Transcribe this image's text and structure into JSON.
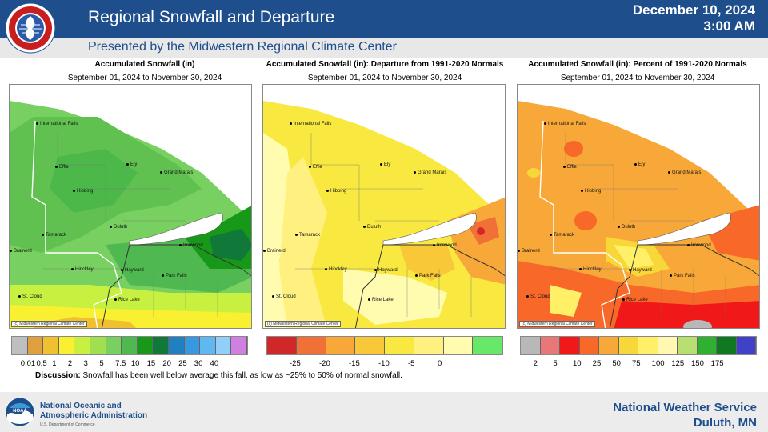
{
  "header": {
    "title": "Regional Snowfall and Departure",
    "subtitle": "Presented by the Midwestern Regional Climate Center",
    "date": "December 10, 2024",
    "time": "3:00 AM",
    "logo_text": "NATIONAL WEATHER SERVICE"
  },
  "panels": [
    {
      "title": "Accumulated Snowfall (in)",
      "dates": "September 01, 2024 to November 30, 2024",
      "legend": {
        "colors": [
          "#bfbfbf",
          "#e0a040",
          "#f0c030",
          "#f8f030",
          "#c8f040",
          "#a0e050",
          "#78d060",
          "#50b850",
          "#189818",
          "#107838",
          "#2080c0",
          "#3898e0",
          "#60b8f0",
          "#90d0f8",
          "#d080e0"
        ],
        "labels": [
          "0.01",
          "0.5",
          "1",
          "2",
          "3",
          "5",
          "7.5",
          "10",
          "15",
          "20",
          "25",
          "30",
          "40"
        ]
      }
    },
    {
      "title": "Accumulated Snowfall (in): Departure from 1991-2020 Normals",
      "dates": "September 01, 2024 to November 30, 2024",
      "legend": {
        "colors": [
          "#d02828",
          "#f07038",
          "#f8a838",
          "#f8c838",
          "#f8e840",
          "#fff080",
          "#fffcb0",
          "#68e868"
        ],
        "labels": [
          "-25",
          "-20",
          "-15",
          "-10",
          "-5",
          "0"
        ]
      }
    },
    {
      "title": "Accumulated Snowfall (in): Percent of 1991-2020 Normals",
      "dates": "September 01, 2024 to November 30, 2024",
      "legend": {
        "colors": [
          "#b8b8b8",
          "#e87878",
          "#f01818",
          "#f86828",
          "#f8a838",
          "#f8d838",
          "#fff068",
          "#fff8b0",
          "#b8e070",
          "#30b030",
          "#107820",
          "#4040c8"
        ],
        "labels": [
          "2",
          "5",
          "10",
          "25",
          "50",
          "75",
          "100",
          "125",
          "150",
          "175"
        ]
      }
    }
  ],
  "cities": [
    "International Falls",
    "Effie",
    "Ely",
    "Grand Marais",
    "Hibbing",
    "Duluth",
    "Tamarack",
    "Ironwood",
    "Brainerd",
    "Hinckley",
    "Hayward",
    "Park Falls",
    "St. Cloud",
    "Rice Lake"
  ],
  "copyright": "(c) Midwestern Regional Climate Center",
  "discussion": {
    "label": "Discussion:",
    "text": "Snowfall has been well below average this fall, as low as ~25% to 50% of normal snowfall."
  },
  "footer": {
    "noaa_line1": "National Oceanic and",
    "noaa_line2": "Atmospheric Administration",
    "noaa_dept": "U.S. Department of Commerce",
    "noaa_logo_text": "NOAA",
    "nws_line1": "National Weather Service",
    "nws_line2": "Duluth, MN"
  }
}
